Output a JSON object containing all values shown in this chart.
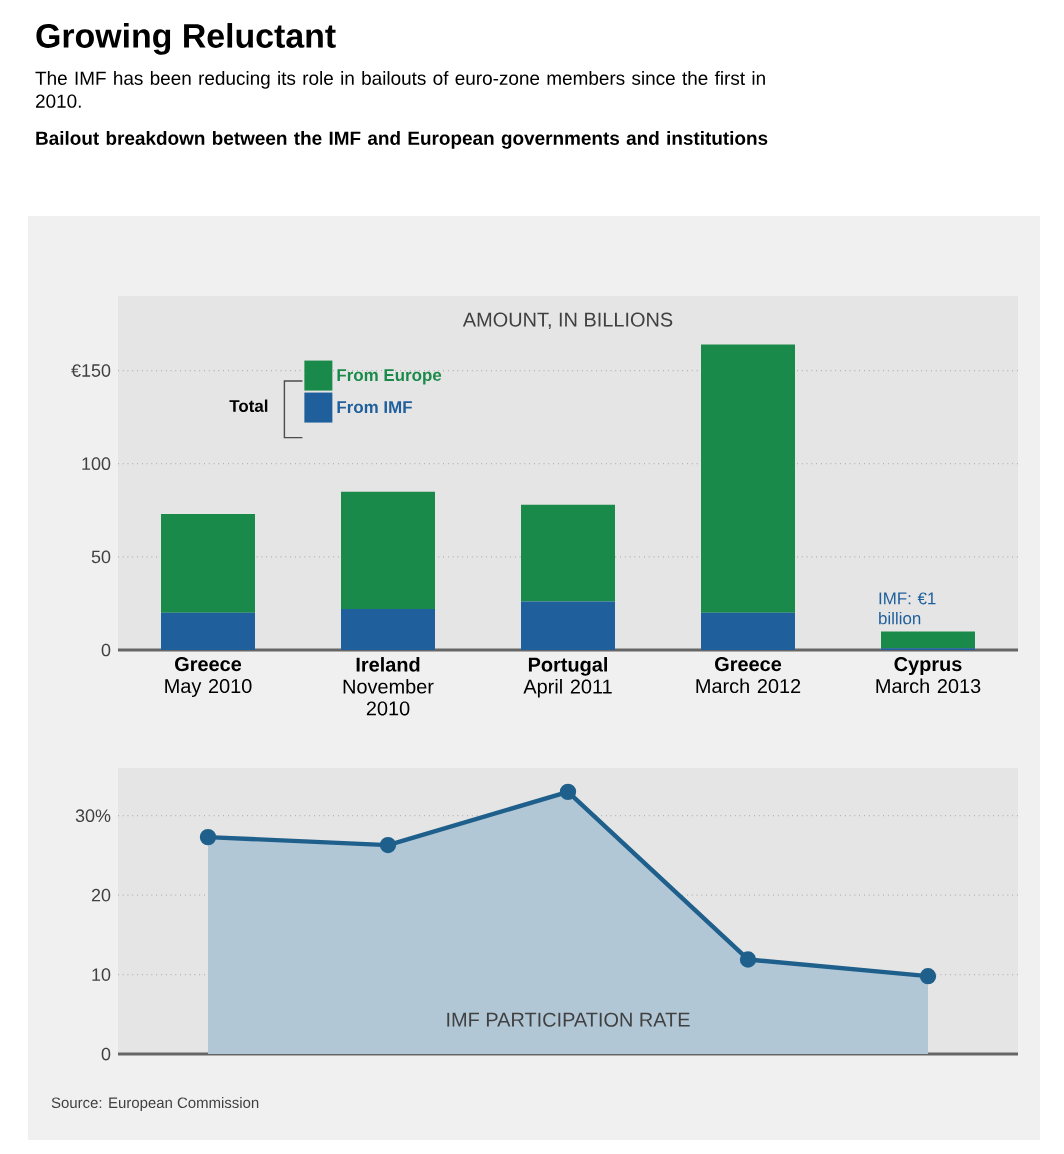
{
  "chart_data": [
    {
      "type": "bar",
      "title": "Growing Reluctant",
      "subtitle": "The IMF has been reducing its role in bailouts of euro-zone members since the first in 2010.",
      "annotations": [
        "Bailout breakdown between the IMF and European governments and institutions",
        {
          "text": "IMF: €1 billion",
          "x": "**Cyprus** March 2013",
          "y": 10
        }
      ],
      "ylabel": "AMOUNT, IN BILLIONS",
      "legend_title": "Total",
      "categories": [
        "**Greece** May 2010",
        "**Ireland** November 2010",
        "**Portugal** April 2011",
        "**Greece** March 2012",
        "**Cyprus** March 2013"
      ],
      "stacked": true,
      "legend": "top left",
      "grid": "y",
      "series": [
        {
          "name": "From IMF",
          "color": "#1f5f9b",
          "values": [
            20,
            22,
            26,
            20,
            1
          ]
        },
        {
          "name": "From Europe",
          "color": "#1a8a4a",
          "values": [
            53,
            63,
            52,
            144,
            9
          ]
        }
      ],
      "ylim": [
        0,
        190
      ],
      "yticks": [
        0,
        50,
        100,
        {
          "value": 150,
          "label": "€150"
        }
      ]
    },
    {
      "type": "area",
      "ylabel": "IMF PARTICIPATION RATE",
      "annotations": [
        "Source: European Commission"
      ],
      "categories": [
        null,
        null,
        null,
        null,
        null
      ],
      "tick_labels": "y",
      "grid": "y",
      "marker": "circle",
      "color": "#1f5f8b",
      "values": [
        27.3,
        26.3,
        33,
        11.9,
        9.8
      ],
      "ylim": [
        0,
        36
      ],
      "yticks": [
        0,
        10,
        20,
        {
          "value": 30,
          "label": "30%"
        }
      ]
    }
  ]
}
